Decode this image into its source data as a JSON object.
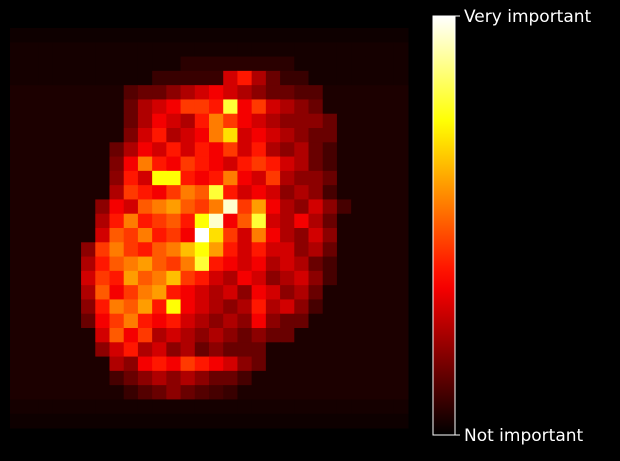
{
  "chart_data": {
    "type": "heatmap",
    "colormap": "hot",
    "clim": [
      0,
      100
    ],
    "cticks": [
      {
        "value": 100,
        "label": "Very important"
      },
      {
        "value": 0,
        "label": "Not important"
      }
    ],
    "values": [
      [
        2,
        2,
        2,
        2,
        2,
        2,
        2,
        2,
        2,
        2,
        2,
        2,
        2,
        2,
        2,
        2,
        2,
        2,
        2,
        2,
        2,
        2,
        2,
        2,
        2,
        2,
        2,
        2
      ],
      [
        3,
        3,
        3,
        3,
        3,
        3,
        3,
        3,
        3,
        3,
        3,
        3,
        3,
        3,
        3,
        3,
        3,
        3,
        3,
        3,
        3,
        3,
        3,
        3,
        3,
        3,
        3,
        3
      ],
      [
        3,
        3,
        3,
        3,
        3,
        3,
        3,
        3,
        3,
        3,
        3,
        3,
        6,
        6,
        6,
        6,
        6,
        6,
        6,
        6,
        3,
        3,
        3,
        3,
        3,
        3,
        3,
        3
      ],
      [
        3,
        3,
        3,
        3,
        3,
        3,
        3,
        3,
        3,
        3,
        8,
        8,
        8,
        8,
        8,
        30,
        40,
        25,
        15,
        8,
        8,
        3,
        3,
        3,
        3,
        3,
        3,
        3
      ],
      [
        4,
        4,
        4,
        4,
        4,
        4,
        4,
        4,
        12,
        15,
        15,
        20,
        25,
        30,
        35,
        30,
        25,
        20,
        15,
        15,
        12,
        12,
        4,
        4,
        4,
        4,
        4,
        4
      ],
      [
        4,
        4,
        4,
        4,
        4,
        4,
        4,
        4,
        15,
        25,
        30,
        35,
        45,
        45,
        40,
        80,
        35,
        45,
        30,
        25,
        20,
        15,
        4,
        4,
        4,
        4,
        4,
        4
      ],
      [
        4,
        4,
        4,
        4,
        4,
        4,
        4,
        4,
        15,
        25,
        35,
        30,
        25,
        40,
        55,
        45,
        35,
        30,
        25,
        20,
        20,
        20,
        15,
        4,
        4,
        4,
        4,
        4
      ],
      [
        4,
        4,
        4,
        4,
        4,
        4,
        4,
        4,
        18,
        30,
        40,
        25,
        30,
        35,
        55,
        70,
        30,
        35,
        30,
        25,
        20,
        15,
        15,
        4,
        4,
        4,
        4,
        4
      ],
      [
        4,
        4,
        4,
        4,
        4,
        4,
        4,
        15,
        25,
        35,
        30,
        40,
        30,
        40,
        35,
        45,
        30,
        40,
        25,
        20,
        25,
        15,
        10,
        4,
        4,
        4,
        4,
        4
      ],
      [
        4,
        4,
        4,
        4,
        4,
        4,
        4,
        18,
        35,
        55,
        40,
        35,
        45,
        40,
        35,
        30,
        40,
        45,
        40,
        30,
        25,
        15,
        10,
        4,
        4,
        4,
        4,
        4
      ],
      [
        4,
        4,
        4,
        4,
        4,
        4,
        4,
        20,
        40,
        30,
        75,
        75,
        40,
        35,
        40,
        55,
        35,
        30,
        45,
        25,
        20,
        20,
        15,
        4,
        4,
        4,
        4,
        4
      ],
      [
        4,
        4,
        4,
        4,
        4,
        4,
        4,
        25,
        45,
        40,
        35,
        45,
        55,
        50,
        80,
        40,
        30,
        35,
        30,
        20,
        25,
        20,
        10,
        4,
        4,
        4,
        4,
        4
      ],
      [
        4,
        4,
        4,
        4,
        4,
        4,
        20,
        35,
        30,
        50,
        55,
        60,
        50,
        45,
        55,
        95,
        45,
        60,
        35,
        25,
        20,
        30,
        20,
        10,
        4,
        4,
        4,
        4
      ],
      [
        4,
        4,
        4,
        4,
        4,
        4,
        25,
        40,
        55,
        40,
        45,
        50,
        40,
        75,
        95,
        35,
        50,
        80,
        30,
        25,
        35,
        25,
        15,
        4,
        4,
        4,
        4,
        4
      ],
      [
        4,
        4,
        4,
        4,
        4,
        4,
        30,
        50,
        45,
        55,
        40,
        45,
        35,
        100,
        70,
        45,
        30,
        55,
        35,
        25,
        20,
        30,
        20,
        4,
        4,
        4,
        4,
        4
      ],
      [
        4,
        4,
        4,
        4,
        4,
        20,
        45,
        55,
        45,
        40,
        50,
        55,
        65,
        75,
        60,
        40,
        30,
        40,
        30,
        30,
        20,
        25,
        15,
        4,
        4,
        4,
        4,
        4
      ],
      [
        4,
        4,
        4,
        4,
        4,
        25,
        40,
        50,
        55,
        60,
        50,
        45,
        55,
        80,
        40,
        35,
        30,
        35,
        25,
        30,
        25,
        15,
        10,
        4,
        4,
        4,
        4,
        4
      ],
      [
        4,
        4,
        4,
        4,
        4,
        30,
        45,
        40,
        60,
        50,
        55,
        65,
        45,
        40,
        30,
        25,
        35,
        30,
        20,
        25,
        30,
        20,
        10,
        4,
        4,
        4,
        4,
        4
      ],
      [
        4,
        4,
        4,
        4,
        4,
        25,
        50,
        35,
        45,
        55,
        60,
        40,
        35,
        30,
        25,
        30,
        20,
        35,
        30,
        20,
        25,
        15,
        4,
        4,
        4,
        4,
        4,
        4
      ],
      [
        4,
        4,
        4,
        4,
        4,
        20,
        40,
        55,
        50,
        60,
        40,
        75,
        35,
        30,
        25,
        20,
        25,
        40,
        25,
        30,
        20,
        10,
        4,
        4,
        4,
        4,
        4,
        4
      ],
      [
        4,
        4,
        4,
        4,
        4,
        15,
        35,
        45,
        55,
        40,
        35,
        40,
        30,
        25,
        20,
        25,
        20,
        35,
        20,
        15,
        15,
        4,
        4,
        4,
        4,
        4,
        4,
        4
      ],
      [
        4,
        4,
        4,
        4,
        4,
        4,
        30,
        50,
        35,
        45,
        25,
        30,
        25,
        20,
        25,
        20,
        15,
        20,
        15,
        15,
        4,
        4,
        4,
        4,
        4,
        4,
        4,
        4
      ],
      [
        4,
        4,
        4,
        4,
        4,
        4,
        20,
        30,
        40,
        25,
        30,
        20,
        25,
        15,
        20,
        15,
        15,
        15,
        4,
        4,
        4,
        4,
        4,
        4,
        4,
        4,
        4,
        4
      ],
      [
        4,
        4,
        4,
        4,
        4,
        4,
        4,
        25,
        20,
        35,
        40,
        35,
        45,
        40,
        35,
        30,
        20,
        15,
        4,
        4,
        4,
        4,
        4,
        4,
        4,
        4,
        4,
        4
      ],
      [
        4,
        4,
        4,
        4,
        4,
        4,
        4,
        10,
        15,
        20,
        25,
        20,
        25,
        20,
        15,
        15,
        10,
        4,
        4,
        4,
        4,
        4,
        4,
        4,
        4,
        4,
        4,
        4
      ],
      [
        4,
        4,
        4,
        4,
        4,
        4,
        4,
        4,
        8,
        12,
        15,
        20,
        15,
        12,
        10,
        8,
        4,
        4,
        4,
        4,
        4,
        4,
        4,
        4,
        4,
        4,
        4,
        4
      ],
      [
        3,
        3,
        3,
        3,
        3,
        3,
        3,
        3,
        3,
        3,
        3,
        3,
        3,
        3,
        3,
        3,
        3,
        3,
        3,
        3,
        3,
        3,
        3,
        3,
        3,
        3,
        3,
        3
      ],
      [
        2,
        2,
        2,
        2,
        2,
        2,
        2,
        2,
        2,
        2,
        2,
        2,
        2,
        2,
        2,
        2,
        2,
        2,
        2,
        2,
        2,
        2,
        2,
        2,
        2,
        2,
        2,
        2
      ]
    ]
  }
}
